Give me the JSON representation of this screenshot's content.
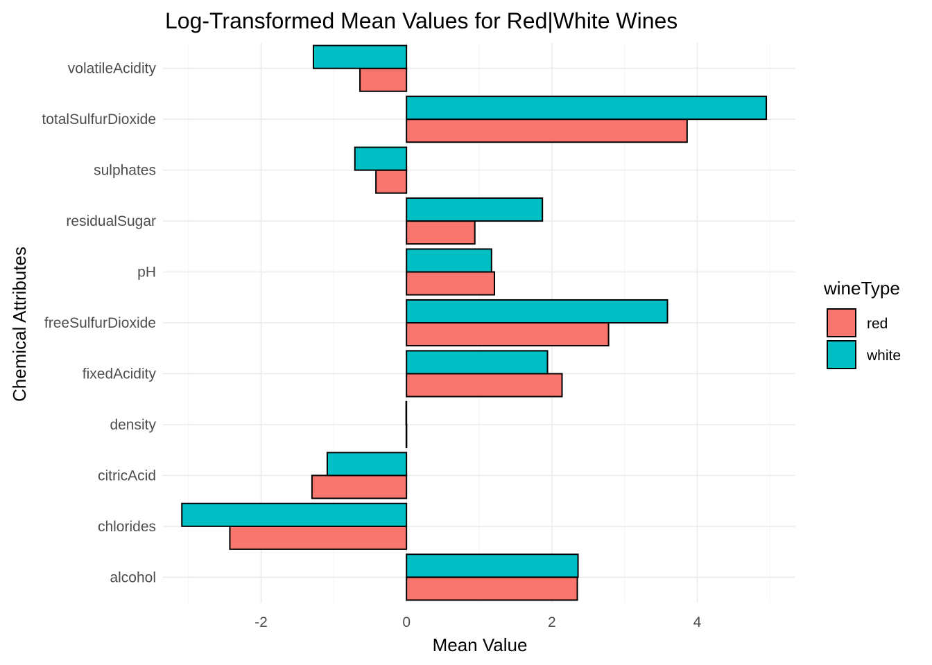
{
  "chart_data": {
    "type": "bar",
    "orientation": "horizontal",
    "title": "Log-Transformed Mean Values for Red|White Wines",
    "xlabel": "Mean Value",
    "ylabel": "Chemical Attributes",
    "xlim": [
      -3.35,
      5.35
    ],
    "x_ticks": [
      -2,
      0,
      2,
      4
    ],
    "x_tick_labels": [
      "-2",
      "0",
      "2",
      "4"
    ],
    "grid": true,
    "categories": [
      "alcohol",
      "chlorides",
      "citricAcid",
      "density",
      "fixedAcidity",
      "freeSulfurDioxide",
      "pH",
      "residualSugar",
      "sulphates",
      "totalSulfurDioxide",
      "volatileAcidity"
    ],
    "legend": {
      "title": "wineType",
      "position": "right"
    },
    "series": [
      {
        "name": "red",
        "color": "#F8766D",
        "values": [
          2.35,
          -2.43,
          -1.3,
          -0.003,
          2.14,
          2.78,
          1.21,
          0.94,
          -0.42,
          3.86,
          -0.64
        ]
      },
      {
        "name": "white",
        "color": "#00BFC4",
        "values": [
          2.36,
          -3.09,
          -1.09,
          -0.005,
          1.94,
          3.59,
          1.17,
          1.87,
          -0.71,
          4.95,
          -1.28
        ]
      }
    ]
  }
}
